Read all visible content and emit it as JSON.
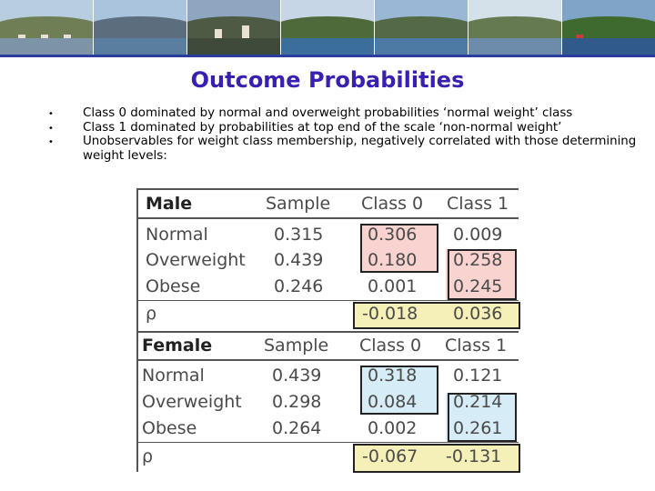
{
  "slide": {
    "title": "Outcome Probabilities",
    "bullets": [
      "Class 0 dominated by normal and overweight probabilities ‘normal weight’ class",
      "Class 1 dominated by probabilities at top end of the scale ‘non-normal weight’",
      "Unobservables for weight class membership, negatively correlated with those determining weight levels:"
    ]
  },
  "table": {
    "columns": [
      "Sample",
      "Class 0",
      "Class 1"
    ],
    "male": {
      "label": "Male",
      "rows": [
        {
          "name": "Normal",
          "sample": "0.315",
          "class0": "0.306",
          "class1": "0.009"
        },
        {
          "name": "Overweight",
          "sample": "0.439",
          "class0": "0.180",
          "class1": "0.258"
        },
        {
          "name": "Obese",
          "sample": "0.246",
          "class0": "0.001",
          "class1": "0.245"
        }
      ],
      "rho_label": "ρ",
      "rho": {
        "class0": "-0.018",
        "class1": "0.036"
      }
    },
    "female": {
      "label": "Female",
      "rows": [
        {
          "name": "Normal",
          "sample": "0.439",
          "class0": "0.318",
          "class1": "0.121"
        },
        {
          "name": "Overweight",
          "sample": "0.298",
          "class0": "0.084",
          "class1": "0.214"
        },
        {
          "name": "Obese",
          "sample": "0.264",
          "class0": "0.002",
          "class1": "0.261"
        }
      ],
      "rho_label": "ρ",
      "rho": {
        "class0": "-0.067",
        "class1": "-0.131"
      }
    },
    "highlight_colors": {
      "male": "#f9d3d0",
      "female": "#d6ecf6",
      "rho": "#f5f0b8"
    }
  },
  "banner": {
    "photo_icons": [
      "lakeside-town-photo",
      "lake-view-photo",
      "cityscape-photo",
      "harbor-photo",
      "mountain-lake-photo",
      "island-photo",
      "promenade-photo"
    ]
  }
}
